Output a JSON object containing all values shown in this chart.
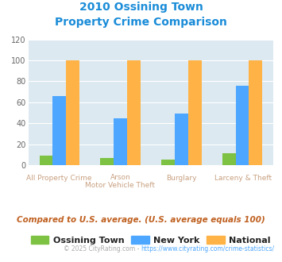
{
  "title_line1": "2010 Ossining Town",
  "title_line2": "Property Crime Comparison",
  "cat_labels_line1": [
    "All Property Crime",
    "Arson",
    "Burglary",
    "Larceny & Theft"
  ],
  "cat_labels_line2": [
    "",
    "Motor Vehicle Theft",
    "",
    ""
  ],
  "ossining": [
    9,
    7,
    5,
    11
  ],
  "newyork": [
    66,
    45,
    49,
    76
  ],
  "national": [
    100,
    100,
    100,
    100
  ],
  "ylim": [
    0,
    120
  ],
  "yticks": [
    0,
    20,
    40,
    60,
    80,
    100,
    120
  ],
  "color_ossining": "#7dc242",
  "color_newyork": "#4da6ff",
  "color_national": "#ffb347",
  "color_title": "#1a8cd8",
  "color_bg": "#dce9f0",
  "color_axis_label": "#c8a080",
  "color_footnote": "#c06020",
  "color_copyright": "#aaaaaa",
  "color_copyright_link": "#4da6ff",
  "legend_labels": [
    "Ossining Town",
    "New York",
    "National"
  ],
  "footnote": "Compared to U.S. average. (U.S. average equals 100)",
  "copyright_plain": "© 2025 CityRating.com - ",
  "copyright_link": "https://www.cityrating.com/crime-statistics/"
}
